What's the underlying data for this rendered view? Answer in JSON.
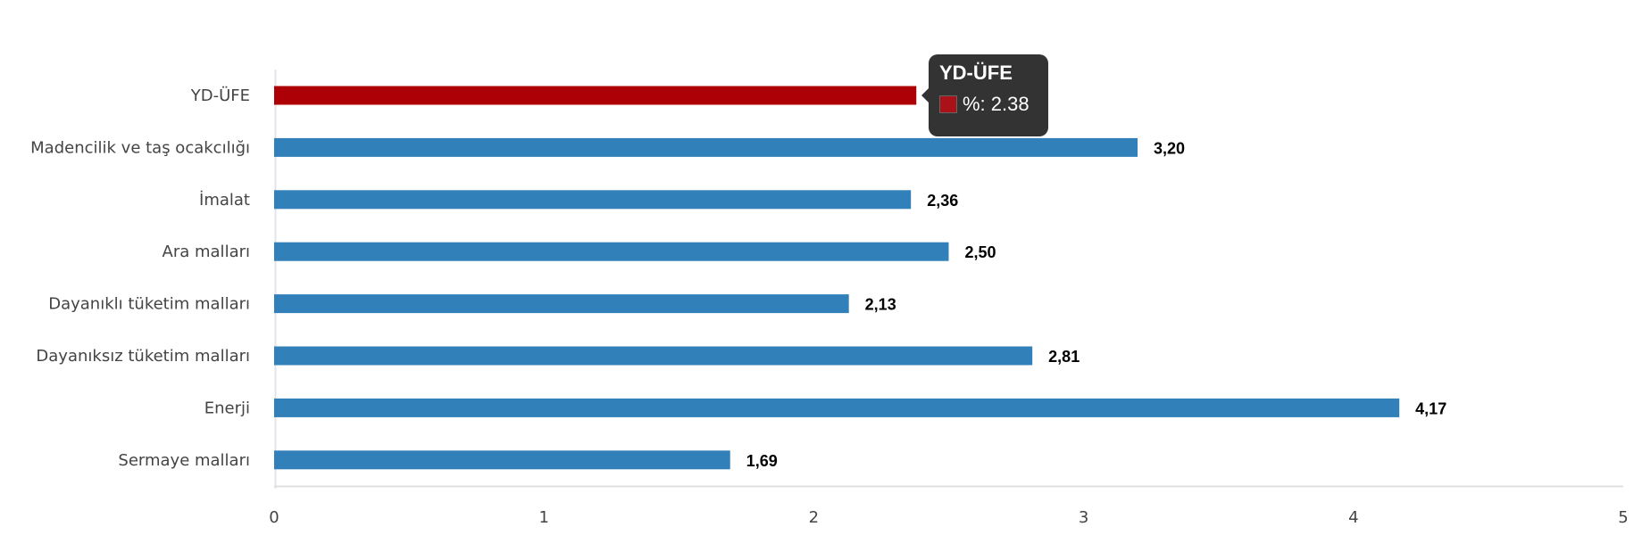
{
  "chart_data": {
    "type": "bar",
    "orientation": "horizontal",
    "categories": [
      "YD-ÜFE",
      "Madencilik ve taş ocakcılığı",
      "İmalat",
      "Ara malları",
      "Dayanıklı tüketim malları",
      "Dayanıksız tüketim malları",
      "Enerji",
      "Sermaye malları"
    ],
    "values": [
      2.38,
      3.2,
      2.36,
      2.5,
      2.13,
      2.81,
      4.17,
      1.69
    ],
    "data_labels": [
      "2,38",
      "3,20",
      "2,36",
      "2,50",
      "2,13",
      "2,81",
      "4,17",
      "1,69"
    ],
    "colors": [
      "#ad0006",
      "#3180b9",
      "#3180b9",
      "#3180b9",
      "#3180b9",
      "#3180b9",
      "#3180b9",
      "#3180b9"
    ],
    "xlim": [
      0,
      5
    ],
    "xticks": [
      "0",
      "1",
      "2",
      "3",
      "4",
      "5"
    ],
    "title": "",
    "xlabel": "",
    "ylabel": "",
    "grid": false
  },
  "tooltip": {
    "title": "YD-ÜFE",
    "value_text": "%: 2.38",
    "swatch_color": "#aa1118"
  }
}
